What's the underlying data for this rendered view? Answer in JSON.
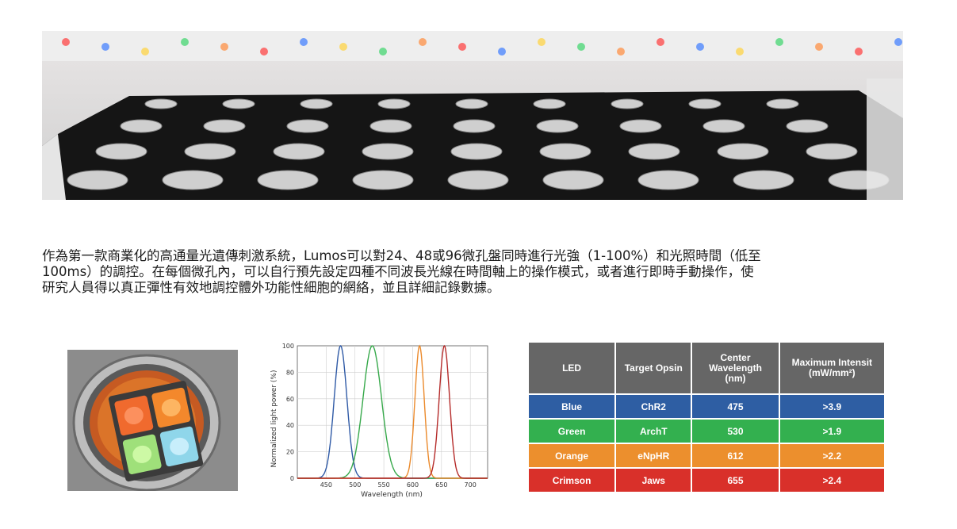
{
  "description": {
    "lines": [
      "作為第一款商業化的高通量光遺傳刺激系統，Lumos可以對24、48或96微孔盤同時進行光強（1-100%）和光照時間（低至",
      "100ms）的調控。在每個微孔內，可以自行預先設定四種不同波長光線在時間軸上的操作模式，或者進行即時手動操作，使",
      "研究人員得以真正彈性有效地調控體外功能性細胞的網絡，並且詳細記錄數據。"
    ]
  },
  "chart_data": {
    "type": "line",
    "title": "",
    "xlabel": "Wavelength (nm)",
    "ylabel": "Normalized light power (%)",
    "xlim": [
      400,
      730
    ],
    "ylim": [
      0,
      100
    ],
    "x_ticks": [
      "450",
      "500",
      "550",
      "600",
      "650",
      "700"
    ],
    "y_ticks": [
      "0",
      "20",
      "40",
      "60",
      "80",
      "100"
    ],
    "grid": true,
    "series": [
      {
        "peak": 475,
        "width": 11,
        "color": "#2f5aa6",
        "values": [
          [
            430,
            1
          ],
          [
            450,
            8
          ],
          [
            460,
            25
          ],
          [
            468,
            65
          ],
          [
            475,
            100
          ],
          [
            482,
            65
          ],
          [
            490,
            25
          ],
          [
            500,
            8
          ],
          [
            520,
            1
          ]
        ]
      },
      {
        "peak": 530,
        "width": 16,
        "color": "#37a94b",
        "values": [
          [
            470,
            1
          ],
          [
            495,
            10
          ],
          [
            510,
            35
          ],
          [
            520,
            75
          ],
          [
            530,
            100
          ],
          [
            540,
            75
          ],
          [
            550,
            35
          ],
          [
            565,
            10
          ],
          [
            590,
            1
          ]
        ]
      },
      {
        "peak": 612,
        "width": 8,
        "color": "#eb8a2c",
        "values": [
          [
            585,
            1
          ],
          [
            598,
            10
          ],
          [
            605,
            45
          ],
          [
            612,
            100
          ],
          [
            619,
            45
          ],
          [
            626,
            10
          ],
          [
            640,
            1
          ]
        ]
      },
      {
        "peak": 655,
        "width": 9,
        "color": "#b52b2a",
        "values": [
          [
            625,
            1
          ],
          [
            640,
            10
          ],
          [
            648,
            45
          ],
          [
            655,
            100
          ],
          [
            662,
            45
          ],
          [
            670,
            10
          ],
          [
            685,
            1
          ]
        ]
      }
    ]
  },
  "table": {
    "headers": [
      "LED",
      "Target Opsin",
      "Center Wavelength (nm)",
      "Maximum Intensit (mW/mm²)"
    ],
    "header_lines": {
      "center": [
        "Center",
        "Wavelength",
        "(nm)"
      ],
      "max": [
        "Maximum Intensit",
        "(mW/mm²)"
      ]
    },
    "rows": [
      {
        "led": "Blue",
        "opsin": "ChR2",
        "wavelength": "475",
        "intensity": ">3.9",
        "color": "#2e5ea3"
      },
      {
        "led": "Green",
        "opsin": "ArchT",
        "wavelength": "530",
        "intensity": ">1.9",
        "color": "#33b04f"
      },
      {
        "led": "Orange",
        "opsin": "eNpHR",
        "wavelength": "612",
        "intensity": ">2.2",
        "color": "#ec8f2d"
      },
      {
        "led": "Crimson",
        "opsin": "Jaws",
        "wavelength": "655",
        "intensity": ">2.4",
        "color": "#d9302a"
      }
    ]
  }
}
